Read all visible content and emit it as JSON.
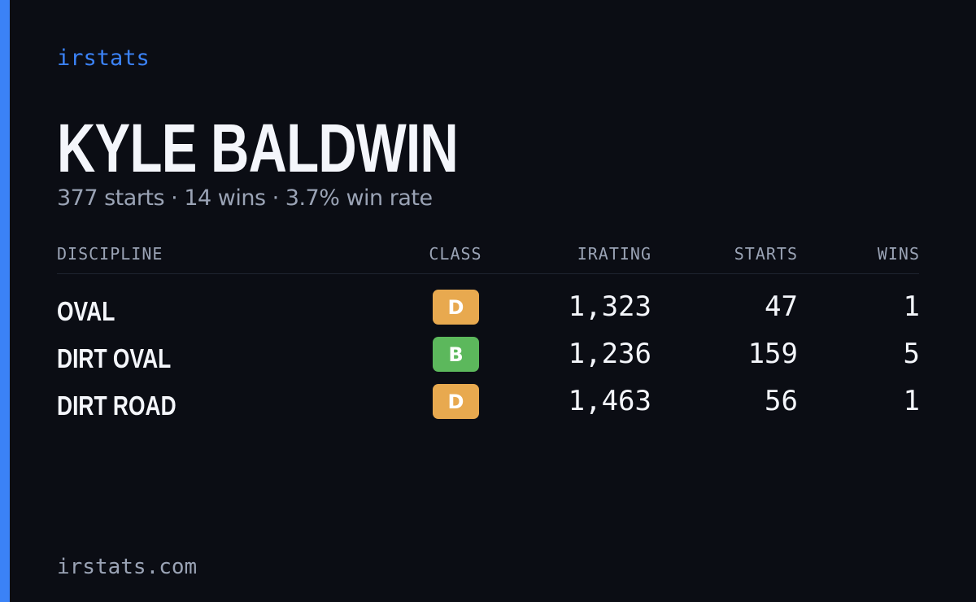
{
  "header": {
    "brand": "irstats",
    "name": "KYLE BALDWIN",
    "summary": "377 starts · 14 wins · 3.7% win rate"
  },
  "table": {
    "columns": [
      "DISCIPLINE",
      "CLASS",
      "IRATING",
      "STARTS",
      "WINS"
    ],
    "rows": [
      {
        "discipline": "OVAL",
        "class": "D",
        "class_color": "#e8a94f",
        "irating": "1,323",
        "starts": "47",
        "wins": "1"
      },
      {
        "discipline": "DIRT OVAL",
        "class": "B",
        "class_color": "#5cb85c",
        "irating": "1,236",
        "starts": "159",
        "wins": "5"
      },
      {
        "discipline": "DIRT ROAD",
        "class": "D",
        "class_color": "#e8a94f",
        "irating": "1,463",
        "starts": "56",
        "wins": "1"
      }
    ]
  },
  "footer": {
    "url": "irstats.com"
  }
}
